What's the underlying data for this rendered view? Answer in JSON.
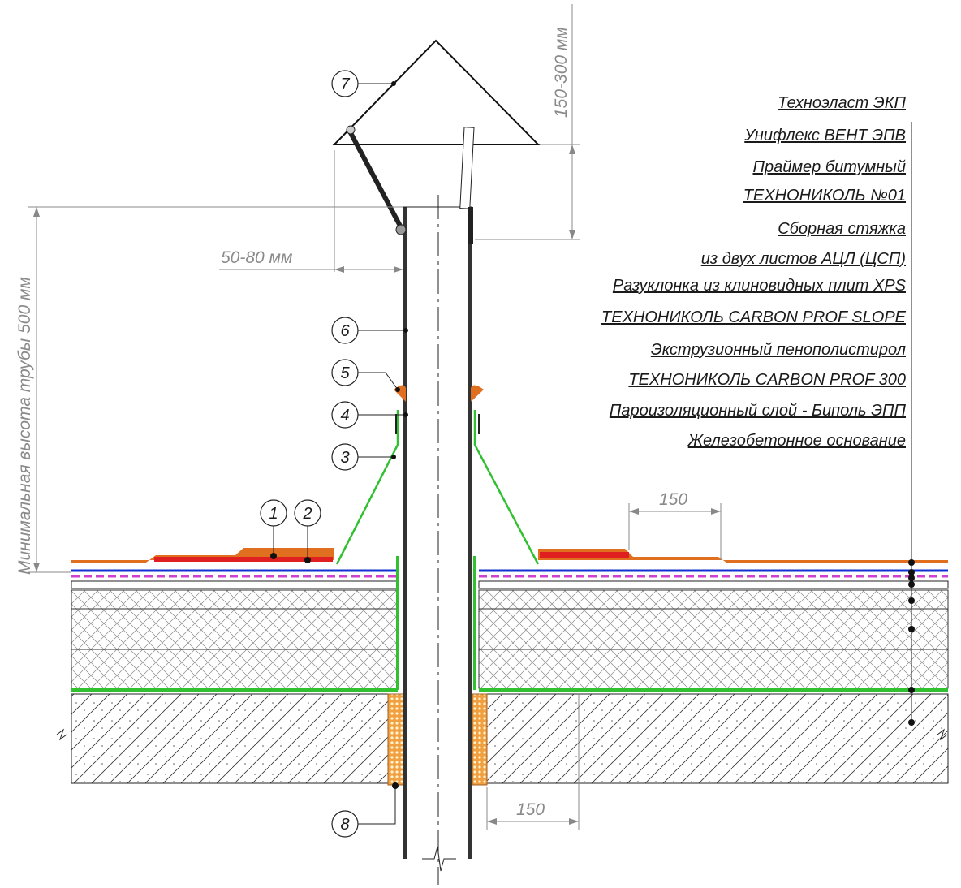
{
  "layers": [
    "Техноэласт ЭКП",
    "Унифлекс ВЕНТ ЭПВ",
    "Праймер битумный",
    "ТЕХНОНИКОЛЬ №01",
    "Сборная стяжка",
    "из двух листов АЦЛ (ЦСП)",
    "Разуклонка из клиновидных плит XPS",
    "ТЕХНОНИКОЛЬ CARBON PROF SLOPE",
    "Экструзионный пенополистирол",
    "ТЕХНОНИКОЛЬ CARBON PROF 300",
    "Пароизоляционный слой - Биполь ЭПП",
    "Железобетонное основание"
  ],
  "dimensions": {
    "cap_height": "150-300 мм",
    "gap": "50-80 мм",
    "min_pipe_height": "Минимальная высота трубы 500 мм",
    "overlap": "150",
    "insulation_offset": "150"
  },
  "callouts": [
    "1",
    "2",
    "3",
    "4",
    "5",
    "6",
    "7",
    "8"
  ]
}
